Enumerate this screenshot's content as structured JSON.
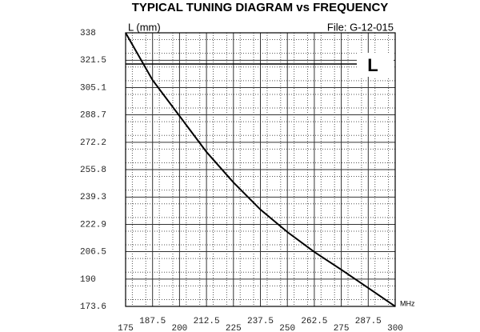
{
  "chart_data": {
    "type": "line",
    "title": "TYPICAL TUNING DIAGRAM vs FREQUENCY",
    "y_label": "L (mm)",
    "x_label": "MHz",
    "file_label": "File:  G-12-015",
    "annotation": "L",
    "x": [
      175,
      187.5,
      200,
      212.5,
      225,
      237.5,
      250,
      262.5,
      275,
      287.5,
      300
    ],
    "values": [
      338,
      309.6,
      288.0,
      266.4,
      248.1,
      231.8,
      218.3,
      206.3,
      195.7,
      184.7,
      173.6
    ],
    "color": "#000000",
    "xlim": [
      175,
      300
    ],
    "ylim": [
      173.6,
      338
    ],
    "xticks": [
      175,
      187.5,
      200,
      212.5,
      225,
      237.5,
      250,
      262.5,
      275,
      287.5,
      300
    ],
    "yticks": [
      173.6,
      190,
      206.5,
      222.9,
      239.3,
      255.8,
      272.2,
      288.7,
      305.1,
      321.5,
      338
    ],
    "grid": true
  }
}
